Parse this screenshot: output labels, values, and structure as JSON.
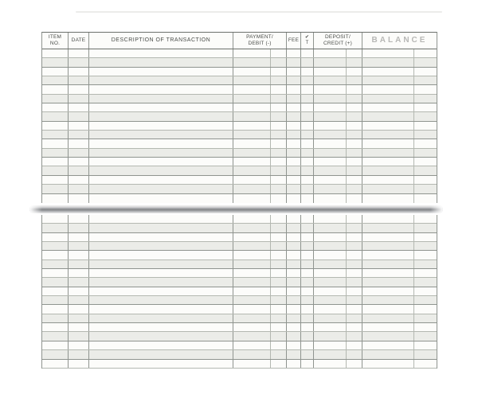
{
  "colors": {
    "paper": "#fcfcfa",
    "stripe": "#ebece8",
    "grid_line": "#8f948f",
    "grid_line_light": "#b4b8b1",
    "header_line": "#6b706b",
    "header_text": "#4b4e4b",
    "balance_text": "#b8b8b6",
    "binding_dark": "#85878a"
  },
  "register": {
    "header": {
      "item_no": [
        "ITEM",
        "NO."
      ],
      "date": "DATE",
      "description": "DESCRIPTION OF TRANSACTION",
      "payment": [
        "PAYMENT/",
        "DEBIT (-)"
      ],
      "fee": "FEE",
      "check": [
        "✔",
        "T"
      ],
      "deposit": [
        "DEPOSIT/",
        "CREDIT (+)"
      ],
      "balance": "BALANCE"
    },
    "top_page": {
      "row_count": 17
    },
    "bottom_page": {
      "row_count": 17
    }
  }
}
